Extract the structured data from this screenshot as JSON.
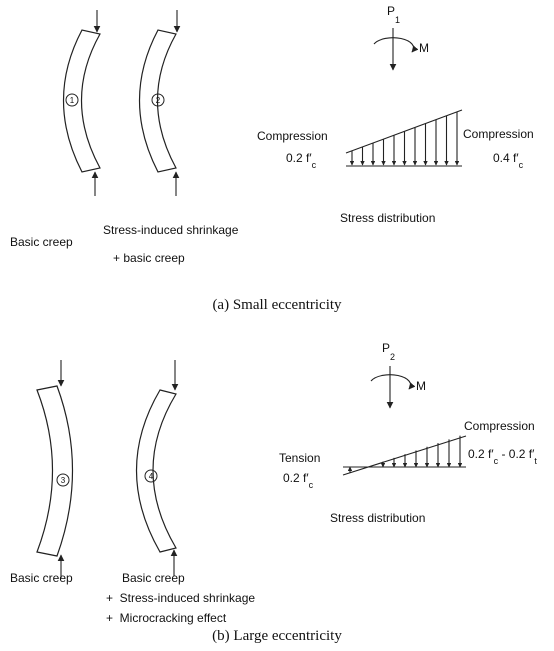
{
  "panel_a": {
    "specimens": [
      {
        "number": "1",
        "label": [
          "Basic creep"
        ]
      },
      {
        "number": "2",
        "label": [
          "Stress-induced shrinkage",
          "+ basic creep"
        ]
      }
    ],
    "load": {
      "symbol": "P",
      "subscript": "1",
      "moment": "M"
    },
    "left_label": "Compression",
    "left_value": {
      "main": "0.2 f′",
      "sub": "c"
    },
    "right_label": "Compression",
    "right_value": {
      "main": "0.4 f′",
      "sub": "c"
    },
    "distribution_label": "Stress distribution",
    "caption": "(a) Small eccentricity"
  },
  "panel_b": {
    "specimens": [
      {
        "number": "3",
        "label": [
          "Basic creep"
        ]
      },
      {
        "number": "4",
        "label": [
          "Basic creep",
          "+  Stress-induced shrinkage",
          "+  Microcracking effect"
        ]
      }
    ],
    "load": {
      "symbol": "P",
      "subscript": "2",
      "moment": "M"
    },
    "left_label": "Tension",
    "left_value": {
      "main": "0.2 f′",
      "sub": "c"
    },
    "right_label": "Compression",
    "right_value": {
      "main": "0.2 f′",
      "sub": "c",
      "main2": " - 0.2 f′",
      "sub2": "t"
    },
    "distribution_label": "Stress distribution",
    "caption": "(b) Large eccentricity"
  }
}
